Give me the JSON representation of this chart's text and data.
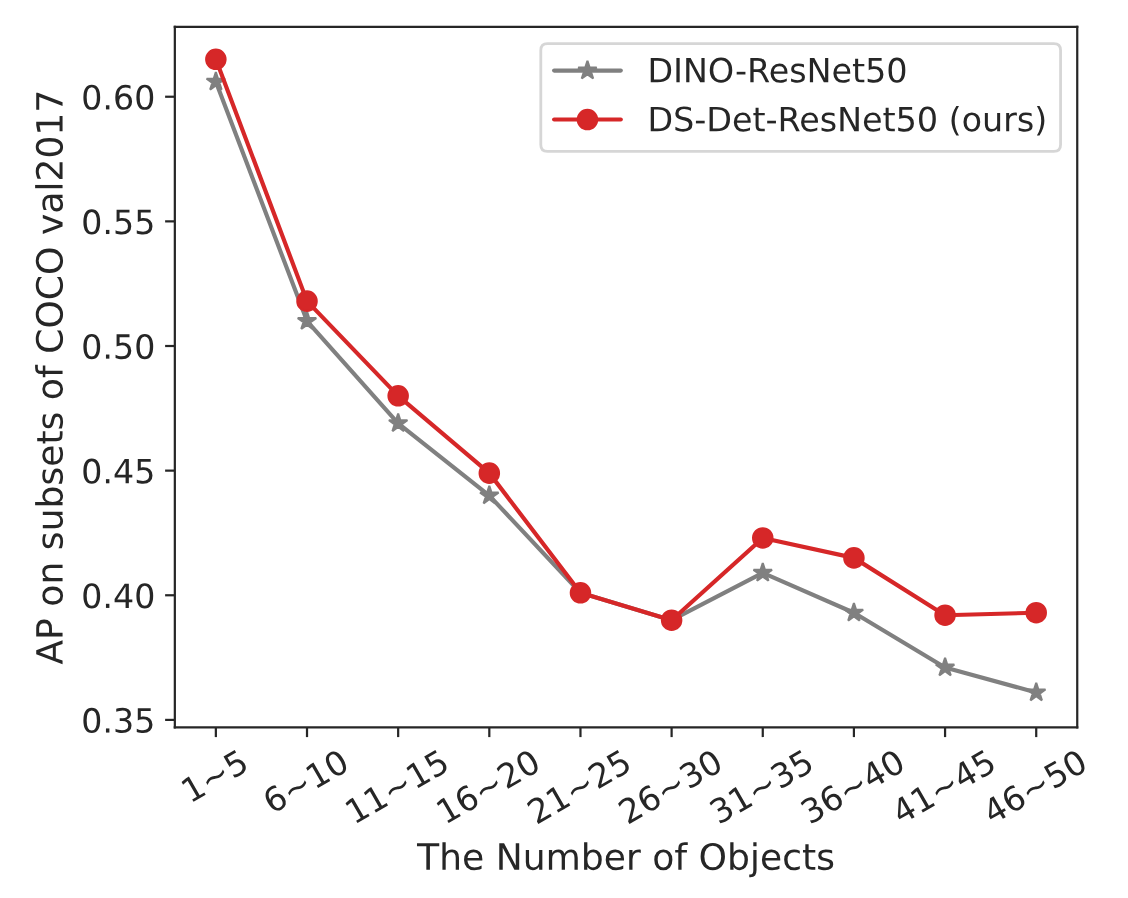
{
  "chart_data": {
    "type": "line",
    "xlabel": "The Number of Objects",
    "ylabel": "AP on subsets of COCO val2017",
    "categories": [
      "1~5",
      "6~10",
      "11~15",
      "16~20",
      "21~25",
      "26~30",
      "31~35",
      "36~40",
      "41~45",
      "46~50"
    ],
    "series": [
      {
        "name": "DINO-ResNet50",
        "color": "#808080",
        "marker": "star",
        "values": [
          0.606,
          0.51,
          0.469,
          0.44,
          0.401,
          0.39,
          0.409,
          0.393,
          0.371,
          0.361
        ]
      },
      {
        "name": "DS-Det-ResNet50 (ours)",
        "color": "#d62728",
        "marker": "circle",
        "values": [
          0.615,
          0.518,
          0.48,
          0.449,
          0.401,
          0.39,
          0.423,
          0.415,
          0.392,
          0.393
        ]
      }
    ],
    "ylim": [
      0.347,
      0.628
    ],
    "yticks": [
      {
        "value": 0.35,
        "label": "0.35"
      },
      {
        "value": 0.4,
        "label": "0.40"
      },
      {
        "value": 0.45,
        "label": "0.45"
      },
      {
        "value": 0.5,
        "label": "0.50"
      },
      {
        "value": 0.55,
        "label": "0.55"
      },
      {
        "value": 0.6,
        "label": "0.60"
      }
    ],
    "legend": "top right",
    "grid": false
  }
}
